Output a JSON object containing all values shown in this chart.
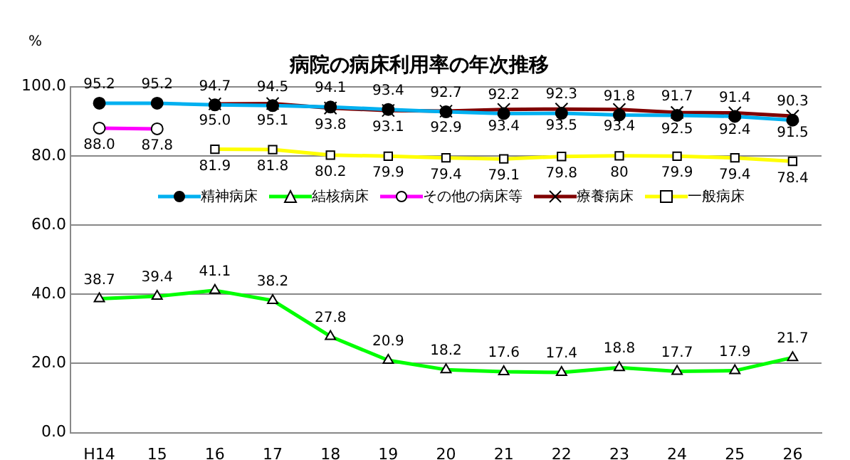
{
  "chart_data": {
    "type": "line",
    "title": "病院の病床利用率の年次推移",
    "ylabel": "%",
    "categories": [
      "H14",
      "15",
      "16",
      "17",
      "18",
      "19",
      "20",
      "21",
      "22",
      "23",
      "24",
      "25",
      "26"
    ],
    "ylim": [
      0,
      100
    ],
    "yticks": [
      {
        "value": 0,
        "label": "0.0"
      },
      {
        "value": 20,
        "label": "20.0"
      },
      {
        "value": 40,
        "label": "40.0"
      },
      {
        "value": 60,
        "label": "60.0"
      },
      {
        "value": 80,
        "label": "80.0"
      },
      {
        "value": 100,
        "label": "100.0"
      }
    ],
    "grid": "y",
    "legend": "top",
    "data_labels": true,
    "series": [
      {
        "name": "精神病床",
        "color": "#00b0f0",
        "marker": "circle",
        "values": [
          95.2,
          95.2,
          94.7,
          94.5,
          94.1,
          93.4,
          92.7,
          92.2,
          92.3,
          91.8,
          91.7,
          91.4,
          90.3
        ],
        "value_labels": [
          "95.2",
          "95.2",
          "94.7",
          "94.5",
          "94.1",
          "93.4",
          "92.7",
          "92.2",
          "92.3",
          "91.8",
          "91.7",
          "91.4",
          "90.3"
        ]
      },
      {
        "name": "結核病床",
        "color": "#00ff00",
        "marker": "triangle",
        "values": [
          38.7,
          39.4,
          41.1,
          38.2,
          27.8,
          20.9,
          18.2,
          17.6,
          17.4,
          18.8,
          17.7,
          17.9,
          21.7
        ],
        "value_labels": [
          "38.7",
          "39.4",
          "41.1",
          "38.2",
          "27.8",
          "20.9",
          "18.2",
          "17.6",
          "17.4",
          "18.8",
          "17.7",
          "17.9",
          "21.7"
        ]
      },
      {
        "name": "その他の病床等",
        "color": "#ff00ff",
        "marker": "circle",
        "values": [
          88.0,
          87.8,
          null,
          null,
          null,
          null,
          null,
          null,
          null,
          null,
          null,
          null,
          null
        ],
        "value_labels": [
          "88.0",
          "87.8",
          null,
          null,
          null,
          null,
          null,
          null,
          null,
          null,
          null,
          null,
          null
        ]
      },
      {
        "name": "療養病床",
        "color": "#800000",
        "marker": "cross",
        "values": [
          null,
          null,
          95.0,
          95.1,
          93.8,
          93.1,
          92.9,
          93.4,
          93.5,
          93.4,
          92.5,
          92.4,
          91.5
        ],
        "value_labels": [
          null,
          null,
          "95.0",
          "95.1",
          "93.8",
          "93.1",
          "92.9",
          "93.4",
          "93.5",
          "93.4",
          "92.5",
          "92.4",
          "91.5"
        ]
      },
      {
        "name": "一般病床",
        "color": "#ffff00",
        "marker": "square",
        "values": [
          null,
          null,
          81.9,
          81.8,
          80.2,
          79.9,
          79.4,
          79.1,
          79.8,
          80,
          79.9,
          79.4,
          78.4
        ],
        "value_labels": [
          null,
          null,
          "81.9",
          "81.8",
          "80.2",
          "79.9",
          "79.4",
          "79.1",
          "79.8",
          "80",
          "79.9",
          "79.4",
          "78.4"
        ]
      }
    ]
  }
}
